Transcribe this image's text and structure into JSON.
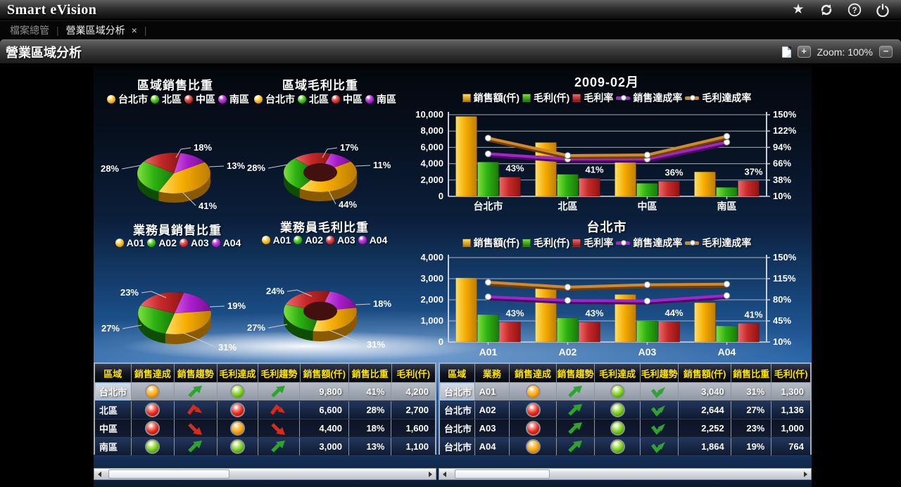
{
  "app": {
    "title": "Smart eVision"
  },
  "tabs": {
    "file_explorer": "檔案總管",
    "active_tab": "營業區域分析",
    "close": "×",
    "separator": "|"
  },
  "toolbar": {
    "page_title": "營業區域分析",
    "zoom_in": "+",
    "zoom_label": "Zoom: 100%",
    "zoom_out": "−"
  },
  "palette": {
    "gold": "#f7b500",
    "green": "#2eb312",
    "red": "#c62a2a",
    "purple": "#a81ec9",
    "purple_line": "#a424cc",
    "orange_line": "#d28a2e",
    "header_yellow": "#ffe400"
  },
  "chart_data": [
    {
      "id": "region-sales-pie",
      "type": "pie",
      "title": "區域銷售比重",
      "categories": [
        "台北市",
        "北區",
        "中區",
        "南區"
      ],
      "values": [
        41,
        28,
        18,
        13
      ],
      "labels": [
        "41%",
        "28%",
        "18%",
        "13%"
      ],
      "colors": [
        "gold",
        "green",
        "red",
        "purple"
      ],
      "donut": false
    },
    {
      "id": "region-profit-pie",
      "type": "pie",
      "title": "區域毛利比重",
      "categories": [
        "台北市",
        "北區",
        "中區",
        "南區"
      ],
      "values": [
        44,
        28,
        17,
        11
      ],
      "labels": [
        "44%",
        "28%",
        "17%",
        "11%"
      ],
      "colors": [
        "gold",
        "green",
        "red",
        "purple"
      ],
      "donut": true
    },
    {
      "id": "agent-sales-pie",
      "type": "pie",
      "title": "業務員銷售比重",
      "categories": [
        "A01",
        "A02",
        "A03",
        "A04"
      ],
      "values": [
        31,
        27,
        23,
        19
      ],
      "labels": [
        "31%",
        "27%",
        "23%",
        "19%"
      ],
      "colors": [
        "gold",
        "green",
        "red",
        "purple"
      ],
      "donut": false
    },
    {
      "id": "agent-profit-pie",
      "type": "pie",
      "title": "業務員毛利比重",
      "categories": [
        "A01",
        "A02",
        "A03",
        "A04"
      ],
      "values": [
        31,
        27,
        24,
        18
      ],
      "labels": [
        "31%",
        "27%",
        "24%",
        "18%"
      ],
      "colors": [
        "gold",
        "green",
        "red",
        "purple"
      ],
      "donut": true
    },
    {
      "id": "month-combo",
      "type": "bar-line",
      "title": "2009-02月",
      "categories": [
        "台北市",
        "北區",
        "中區",
        "南區"
      ],
      "left_axis": {
        "min": 0,
        "max": 10000,
        "ticks": [
          "0",
          "2,000",
          "4,000",
          "6,000",
          "8,000",
          "10,000"
        ]
      },
      "right_axis": {
        "min": 10,
        "max": 150,
        "ticks": [
          "10%",
          "38%",
          "66%",
          "94%",
          "122%",
          "150%"
        ]
      },
      "series": [
        {
          "name": "銷售額(仟)",
          "kind": "bar",
          "axis": "left",
          "color": "gold",
          "values": [
            9800,
            6600,
            4400,
            3000
          ]
        },
        {
          "name": "毛利(仟)",
          "kind": "bar",
          "axis": "left",
          "color": "green",
          "values": [
            4200,
            2700,
            1600,
            1100
          ]
        },
        {
          "name": "毛利率",
          "kind": "bar",
          "axis": "right",
          "color": "red",
          "values": [
            43,
            41,
            36,
            37
          ],
          "labels": [
            "43%",
            "41%",
            "36%",
            "37%"
          ]
        },
        {
          "name": "銷售達成率",
          "kind": "line",
          "axis": "right",
          "color": "purple_line",
          "values": [
            83,
            74,
            74,
            103
          ]
        },
        {
          "name": "毛利達成率",
          "kind": "line",
          "axis": "right",
          "color": "orange_line",
          "values": [
            110,
            80,
            81,
            113
          ]
        }
      ]
    },
    {
      "id": "taipei-combo",
      "type": "bar-line",
      "title": "台北市",
      "categories": [
        "A01",
        "A02",
        "A03",
        "A04"
      ],
      "left_axis": {
        "min": 0,
        "max": 4000,
        "ticks": [
          "0",
          "1,000",
          "2,000",
          "3,000",
          "4,000"
        ]
      },
      "right_axis": {
        "min": 10,
        "max": 150,
        "ticks": [
          "10%",
          "45%",
          "80%",
          "115%",
          "150%"
        ]
      },
      "series": [
        {
          "name": "銷售額(仟)",
          "kind": "bar",
          "axis": "left",
          "color": "gold",
          "values": [
            3040,
            2644,
            2252,
            1864
          ]
        },
        {
          "name": "毛利(仟)",
          "kind": "bar",
          "axis": "left",
          "color": "green",
          "values": [
            1300,
            1136,
            1000,
            764
          ]
        },
        {
          "name": "毛利率",
          "kind": "bar",
          "axis": "right",
          "color": "red",
          "values": [
            43,
            43,
            44,
            41
          ],
          "labels": [
            "43%",
            "43%",
            "44%",
            "41%"
          ]
        },
        {
          "name": "銷售達成率",
          "kind": "line",
          "axis": "right",
          "color": "purple_line",
          "values": [
            85,
            79,
            78,
            87
          ]
        },
        {
          "name": "毛利達成率",
          "kind": "line",
          "axis": "right",
          "color": "orange_line",
          "values": [
            109,
            101,
            105,
            106
          ]
        }
      ]
    }
  ],
  "tables": {
    "left": {
      "headers": [
        "區域",
        "銷售達成",
        "銷售趨勢",
        "毛利達成",
        "毛利趨勢",
        "銷售額(仟)",
        "銷售比重",
        "毛利(仟)"
      ],
      "rows": [
        {
          "selected": true,
          "cells": [
            {
              "t": "text",
              "v": "台北市"
            },
            {
              "t": "light",
              "v": "orange"
            },
            {
              "t": "arrow",
              "v": "up",
              "c": "green"
            },
            {
              "t": "light",
              "v": "green"
            },
            {
              "t": "arrow",
              "v": "up",
              "c": "green"
            },
            {
              "t": "num",
              "v": "9,800"
            },
            {
              "t": "num",
              "v": "41%"
            },
            {
              "t": "num",
              "v": "4,200"
            }
          ]
        },
        {
          "selected": false,
          "cells": [
            {
              "t": "text",
              "v": "北區"
            },
            {
              "t": "light",
              "v": "red"
            },
            {
              "t": "arrow",
              "v": "peak",
              "c": "red"
            },
            {
              "t": "light",
              "v": "red"
            },
            {
              "t": "arrow",
              "v": "peak",
              "c": "red"
            },
            {
              "t": "num",
              "v": "6,600"
            },
            {
              "t": "num",
              "v": "28%"
            },
            {
              "t": "num",
              "v": "2,700"
            }
          ]
        },
        {
          "selected": false,
          "cells": [
            {
              "t": "text",
              "v": "中區"
            },
            {
              "t": "light",
              "v": "red"
            },
            {
              "t": "arrow",
              "v": "down",
              "c": "red"
            },
            {
              "t": "light",
              "v": "orange"
            },
            {
              "t": "arrow",
              "v": "down",
              "c": "red"
            },
            {
              "t": "num",
              "v": "4,400"
            },
            {
              "t": "num",
              "v": "18%"
            },
            {
              "t": "num",
              "v": "1,600"
            }
          ]
        },
        {
          "selected": false,
          "cells": [
            {
              "t": "text",
              "v": "南區"
            },
            {
              "t": "light",
              "v": "green"
            },
            {
              "t": "arrow",
              "v": "up",
              "c": "green"
            },
            {
              "t": "light",
              "v": "green"
            },
            {
              "t": "arrow",
              "v": "up",
              "c": "green"
            },
            {
              "t": "num",
              "v": "3,000"
            },
            {
              "t": "num",
              "v": "13%"
            },
            {
              "t": "num",
              "v": "1,100"
            }
          ]
        }
      ]
    },
    "right": {
      "headers": [
        "區域",
        "業務",
        "銷售達成",
        "銷售趨勢",
        "毛利達成",
        "毛利趨勢",
        "銷售額(仟)",
        "銷售比重",
        "毛利(仟)"
      ],
      "rows": [
        {
          "selected": true,
          "cells": [
            {
              "t": "text",
              "v": "台北市"
            },
            {
              "t": "text",
              "v": "A01"
            },
            {
              "t": "light",
              "v": "orange"
            },
            {
              "t": "arrow",
              "v": "up",
              "c": "green"
            },
            {
              "t": "light",
              "v": "green"
            },
            {
              "t": "arrow",
              "v": "check",
              "c": "green"
            },
            {
              "t": "num",
              "v": "3,040"
            },
            {
              "t": "num",
              "v": "31%"
            },
            {
              "t": "num",
              "v": "1,300"
            }
          ]
        },
        {
          "selected": false,
          "cells": [
            {
              "t": "text",
              "v": "台北市"
            },
            {
              "t": "text",
              "v": "A02"
            },
            {
              "t": "light",
              "v": "red"
            },
            {
              "t": "arrow",
              "v": "up",
              "c": "green"
            },
            {
              "t": "light",
              "v": "green"
            },
            {
              "t": "arrow",
              "v": "check",
              "c": "green"
            },
            {
              "t": "num",
              "v": "2,644"
            },
            {
              "t": "num",
              "v": "27%"
            },
            {
              "t": "num",
              "v": "1,136"
            }
          ]
        },
        {
          "selected": false,
          "cells": [
            {
              "t": "text",
              "v": "台北市"
            },
            {
              "t": "text",
              "v": "A03"
            },
            {
              "t": "light",
              "v": "red"
            },
            {
              "t": "arrow",
              "v": "up",
              "c": "green"
            },
            {
              "t": "light",
              "v": "green"
            },
            {
              "t": "arrow",
              "v": "check",
              "c": "green"
            },
            {
              "t": "num",
              "v": "2,252"
            },
            {
              "t": "num",
              "v": "23%"
            },
            {
              "t": "num",
              "v": "1,000"
            }
          ]
        },
        {
          "selected": false,
          "cells": [
            {
              "t": "text",
              "v": "台北市"
            },
            {
              "t": "text",
              "v": "A04"
            },
            {
              "t": "light",
              "v": "orange"
            },
            {
              "t": "arrow",
              "v": "up",
              "c": "green"
            },
            {
              "t": "light",
              "v": "green"
            },
            {
              "t": "arrow",
              "v": "check",
              "c": "green"
            },
            {
              "t": "num",
              "v": "1,864"
            },
            {
              "t": "num",
              "v": "19%"
            },
            {
              "t": "num",
              "v": "764"
            }
          ]
        }
      ]
    }
  }
}
